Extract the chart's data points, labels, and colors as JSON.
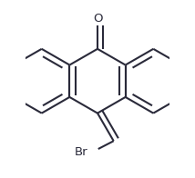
{
  "background": "#ffffff",
  "lc": "#2a2a3a",
  "lw": 1.5,
  "figsize": [
    2.14,
    1.96
  ],
  "dpi": 100,
  "O_label": "O",
  "Br_label": "Br",
  "label_fs": 9.5
}
